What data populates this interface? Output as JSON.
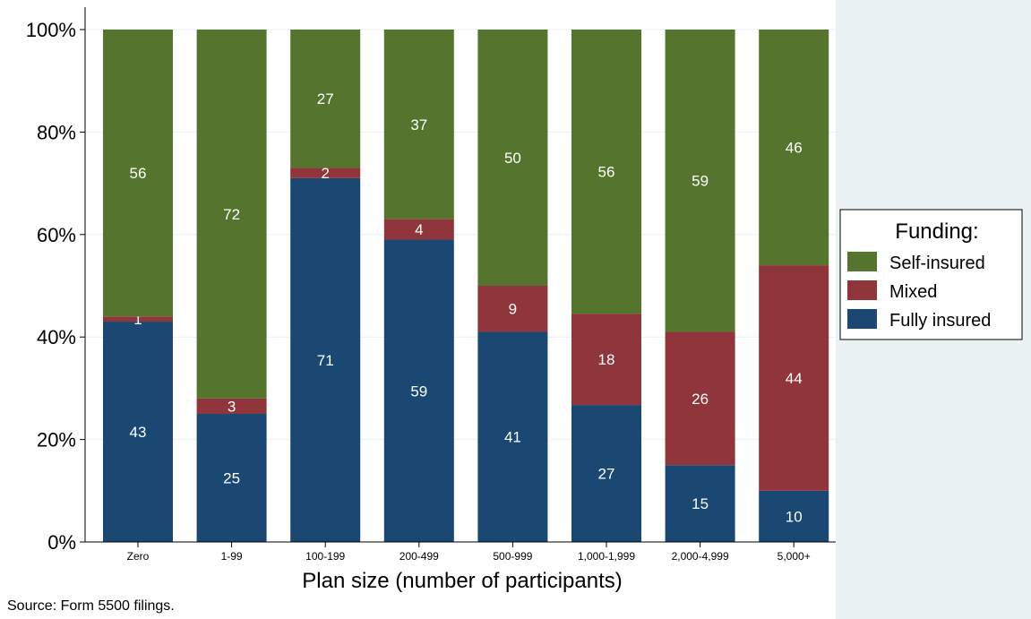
{
  "chart_data": {
    "type": "bar",
    "stacked": true,
    "normalized": true,
    "categories": [
      "Zero",
      "1-99",
      "100-199",
      "200-499",
      "500-999",
      "1,000-1,999",
      "2,000-4,999",
      "5,000+"
    ],
    "series": [
      {
        "name": "Fully insured",
        "color": "#1a4872",
        "values": [
          43,
          25,
          71,
          59,
          41,
          27,
          15,
          10
        ]
      },
      {
        "name": "Mixed",
        "color": "#90353b",
        "values": [
          1,
          3,
          2,
          4,
          9,
          18,
          26,
          44
        ]
      },
      {
        "name": "Self-insured",
        "color": "#55752f",
        "values": [
          56,
          72,
          27,
          37,
          50,
          56,
          59,
          46
        ]
      }
    ],
    "xlabel": "Plan size (number of participants)",
    "ylabel": "",
    "ylim": [
      0,
      100
    ],
    "yticks": [
      "0%",
      "20%",
      "40%",
      "60%",
      "80%",
      "100%"
    ],
    "grid": true,
    "legend": {
      "title": "Funding:",
      "placement": "right",
      "entries": [
        "Self-insured",
        "Mixed",
        "Fully insured"
      ]
    }
  },
  "source_note": "Source: Form 5500 filings.",
  "colors": {
    "plot_background": "#ffffff",
    "outer_background": "#eaf2f3",
    "gridline": "#eaf2f3"
  }
}
